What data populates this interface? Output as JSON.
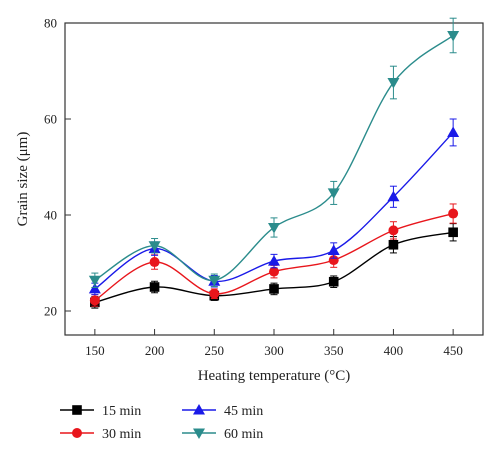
{
  "chart_data": {
    "type": "line",
    "xlabel": "Heating temperature (°C)",
    "ylabel": "Grain size (μm)",
    "x": [
      150,
      200,
      250,
      300,
      350,
      400,
      450
    ],
    "xlim": [
      125,
      475
    ],
    "ylim": [
      15,
      80
    ],
    "xticks": [
      "150",
      "200",
      "250",
      "300",
      "350",
      "400",
      "450"
    ],
    "yticks": [
      "20",
      "40",
      "60",
      "80"
    ],
    "grid": false,
    "legend_position": "bottom",
    "series": [
      {
        "name": "15 min",
        "color": "#000000",
        "marker": "square",
        "values": [
          21.8,
          25.0,
          23.2,
          24.6,
          26.1,
          33.8,
          36.4
        ],
        "errors": [
          1.2,
          1.2,
          1.0,
          1.2,
          1.2,
          1.7,
          1.8
        ]
      },
      {
        "name": "30 min",
        "color": "#e8161c",
        "marker": "circle",
        "values": [
          22.2,
          30.2,
          23.6,
          28.2,
          30.6,
          36.8,
          40.3
        ],
        "errors": [
          1.2,
          1.5,
          1.0,
          1.3,
          1.5,
          1.8,
          2.0
        ]
      },
      {
        "name": "45 min",
        "color": "#1a1ae8",
        "marker": "triangle-up",
        "values": [
          24.6,
          33.0,
          26.2,
          30.4,
          32.6,
          43.8,
          57.2
        ],
        "errors": [
          1.2,
          1.4,
          1.2,
          1.4,
          1.6,
          2.2,
          2.8
        ]
      },
      {
        "name": "60 min",
        "color": "#2b8c8c",
        "marker": "triangle-down",
        "values": [
          26.4,
          33.6,
          26.4,
          37.4,
          44.6,
          67.6,
          77.4
        ],
        "errors": [
          1.5,
          1.5,
          1.3,
          2.0,
          2.4,
          3.4,
          3.6
        ]
      }
    ]
  }
}
